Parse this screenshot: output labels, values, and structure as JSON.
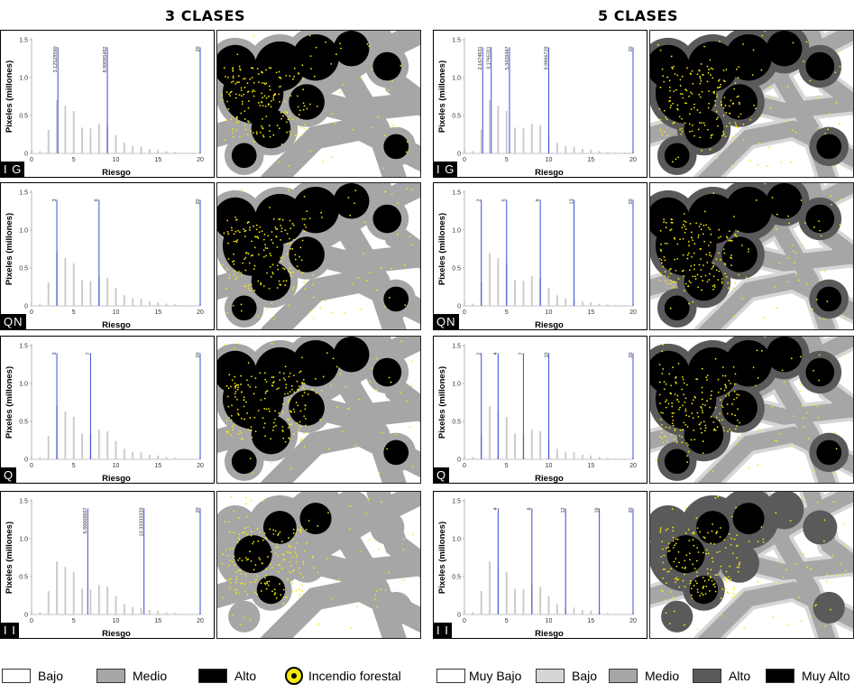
{
  "titles": {
    "left": "3 CLASES",
    "right": "5 CLASES"
  },
  "axis_text": {
    "ylabel": "Pixeles (millones)",
    "xlabel": "Riesgo"
  },
  "colors": {
    "histogram_bar": "#c8c8c8",
    "break_line": "#4b5ddb",
    "fire_point": "#f6ea0a",
    "class3": [
      "#ffffff",
      "#a6a6a6",
      "#000000"
    ],
    "class5": [
      "#ffffff",
      "#d6d6d6",
      "#a6a6a6",
      "#5a5a5a",
      "#000000"
    ]
  },
  "chart_data": {
    "type": "bar",
    "x": [
      0,
      1,
      2,
      3,
      4,
      5,
      6,
      7,
      8,
      9,
      10,
      11,
      12,
      13,
      14,
      15,
      16,
      17,
      18,
      19,
      20
    ],
    "values": [
      0.05,
      0.03,
      0.31,
      0.7,
      0.63,
      0.56,
      0.34,
      0.33,
      0.39,
      0.37,
      0.24,
      0.14,
      0.1,
      0.09,
      0.06,
      0.05,
      0.03,
      0.02,
      0.01,
      0.01,
      0.02
    ],
    "xlabel": "Riesgo",
    "ylabel": "Pixeles (millones)",
    "xlim": [
      0,
      20
    ],
    "ylim": [
      0,
      1.5
    ],
    "xticks": [
      "0",
      "5",
      "10",
      "15",
      "20"
    ],
    "yticks": [
      "0",
      "0.5",
      "1.0",
      "1.5"
    ],
    "panels": [
      {
        "column": "3 CLASES",
        "method": "I G",
        "breaks": [
          3.1252956,
          8.99095492,
          20
        ],
        "break_labels": [
          "3.12529560",
          "8.99095492",
          "20"
        ]
      },
      {
        "column": "3 CLASES",
        "method": "QN",
        "breaks": [
          3,
          8,
          20
        ],
        "break_labels": [
          "3",
          "8",
          "20"
        ]
      },
      {
        "column": "3 CLASES",
        "method": "Q",
        "breaks": [
          3,
          7,
          20
        ],
        "break_labels": [
          "3",
          "7",
          "20"
        ]
      },
      {
        "column": "3 CLASES",
        "method": "I I",
        "breaks": [
          6.66666667,
          13.33333333,
          20
        ],
        "break_labels": [
          "6.66666667",
          "13.33333333",
          "20"
        ]
      },
      {
        "column": "5 CLASES",
        "method": "I G",
        "breaks": [
          2.1674631,
          3.1765311,
          5.3439447,
          9.9996729,
          20
        ],
        "break_labels": [
          "2.1674631",
          "3.1765311",
          "5.3439447",
          "9.9996729",
          "20"
        ]
      },
      {
        "column": "5 CLASES",
        "method": "QN",
        "breaks": [
          2,
          5,
          9,
          13,
          20
        ],
        "break_labels": [
          "2",
          "5",
          "9",
          "13",
          "20"
        ]
      },
      {
        "column": "5 CLASES",
        "method": "Q",
        "breaks": [
          2,
          4,
          7,
          10,
          20
        ],
        "break_labels": [
          "2",
          "4",
          "7",
          "10",
          "20"
        ]
      },
      {
        "column": "5 CLASES",
        "method": "I I",
        "breaks": [
          4,
          8,
          12,
          16,
          20
        ],
        "break_labels": [
          "4",
          "8",
          "12",
          "16",
          "20"
        ]
      }
    ]
  },
  "legend3": [
    {
      "label": "Bajo",
      "color": "#ffffff"
    },
    {
      "label": "Medio",
      "color": "#a6a6a6"
    },
    {
      "label": "Alto",
      "color": "#000000"
    },
    {
      "label": "Incendio forestal",
      "color": "#f6ea0a"
    }
  ],
  "legend5": [
    {
      "label": "Muy Bajo",
      "color": "#ffffff"
    },
    {
      "label": "Bajo",
      "color": "#d6d6d6"
    },
    {
      "label": "Medio",
      "color": "#a6a6a6"
    },
    {
      "label": "Alto",
      "color": "#5a5a5a"
    },
    {
      "label": "Muy Alto",
      "color": "#000000"
    }
  ]
}
